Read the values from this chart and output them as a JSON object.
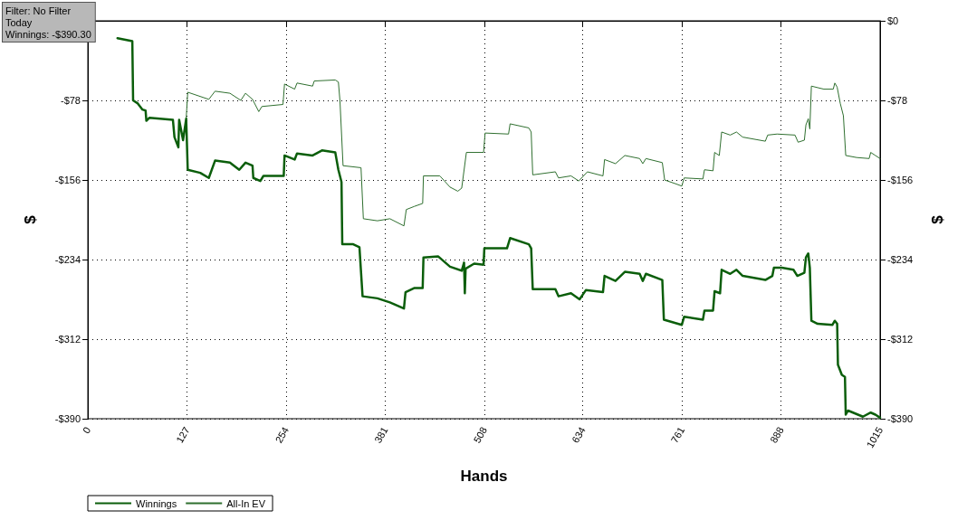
{
  "chart_data": {
    "type": "line",
    "xlabel": "Hands",
    "ylabel": "$",
    "y2label": "$",
    "annotations": [
      "Filter: No Filter\nToday\nWinnings: -$390.30"
    ],
    "xlim": [
      0,
      1015
    ],
    "xticks": [
      0,
      127,
      254,
      381,
      508,
      634,
      761,
      888,
      1015
    ],
    "ylim": [
      -390,
      0
    ],
    "yticks": [
      {
        "value": 0,
        "label": null
      },
      {
        "value": -78,
        "label": "-$78"
      },
      {
        "value": -156,
        "label": "-$156"
      },
      {
        "value": -234,
        "label": "-$234"
      },
      {
        "value": -312,
        "label": "-$312"
      },
      {
        "value": -390,
        "label": "-$390"
      }
    ],
    "y2lim": [
      -390,
      0
    ],
    "y2ticks": [
      {
        "value": 0,
        "label": "$0"
      },
      {
        "value": -78,
        "label": "-$78"
      },
      {
        "value": -156,
        "label": "-$156"
      },
      {
        "value": -234,
        "label": "-$234"
      },
      {
        "value": -312,
        "label": "-$312"
      },
      {
        "value": -390,
        "label": "-$390"
      }
    ],
    "grid": true,
    "legend": "bottom left",
    "marker": "none",
    "line_style": "solid",
    "series": [
      {
        "name": "Winnings",
        "color": "#0b5e0b",
        "x": [
          38,
          57,
          58,
          64,
          70,
          74,
          75,
          79,
          109,
          111,
          116,
          117,
          122,
          126,
          128,
          144,
          155,
          163,
          182,
          194,
          202,
          211,
          212,
          221,
          225,
          251,
          252,
          265,
          268,
          288,
          300,
          317,
          321,
          325,
          326,
          340,
          348,
          352,
          371,
          387,
          405,
          407,
          418,
          429,
          430,
          449,
          464,
          479,
          482,
          483,
          484,
          495,
          507,
          508,
          537,
          541,
          565,
          568,
          570,
          599,
          603,
          619,
          630,
          638,
          660,
          662,
          676,
          688,
          707,
          711,
          715,
          736,
          738,
          761,
          764,
          788,
          790,
          801,
          803,
          810,
          812,
          823,
          831,
          839,
          868,
          877,
          879,
          889,
          904,
          909,
          918,
          920,
          923,
          925,
          927,
          935,
          954,
          957,
          960,
          961,
          966,
          970,
          971,
          974,
          993,
          1003,
          1009,
          1015
        ],
        "values": [
          -17,
          -20,
          -78,
          -81,
          -87,
          -88,
          -98,
          -95,
          -97,
          -114,
          -124,
          -97,
          -117,
          -96,
          -146,
          -149,
          -154,
          -137,
          -139,
          -146,
          -139,
          -142,
          -154,
          -157,
          -152,
          -152,
          -132,
          -136,
          -130,
          -132,
          -127,
          -129,
          -146,
          -158,
          -219,
          -219,
          -222,
          -270,
          -272,
          -276,
          -282,
          -266,
          -262,
          -262,
          -232,
          -231,
          -241,
          -245,
          -237,
          -267,
          -243,
          -238,
          -239,
          -223,
          -223,
          -213,
          -219,
          -223,
          -263,
          -263,
          -270,
          -267,
          -273,
          -264,
          -266,
          -250,
          -255,
          -246,
          -248,
          -255,
          -248,
          -254,
          -293,
          -298,
          -290,
          -293,
          -284,
          -284,
          -265,
          -267,
          -244,
          -248,
          -244,
          -250,
          -254,
          -250,
          -242,
          -242,
          -244,
          -250,
          -247,
          -232,
          -228,
          -242,
          -294,
          -297,
          -298,
          -294,
          -297,
          -337,
          -347,
          -349,
          -386,
          -382,
          -388,
          -384,
          -386,
          -389
        ]
      },
      {
        "name": "All-In EV",
        "color": "#2f6f2f",
        "x": [
          126,
          128,
          155,
          163,
          182,
          196,
          202,
          211,
          219,
          223,
          250,
          252,
          265,
          268,
          288,
          290,
          317,
          321,
          323,
          327,
          350,
          353,
          371,
          387,
          405,
          408,
          418,
          429,
          430,
          451,
          464,
          474,
          479,
          485,
          507,
          509,
          539,
          541,
          565,
          568,
          570,
          599,
          603,
          619,
          629,
          640,
          660,
          662,
          676,
          688,
          707,
          711,
          715,
          736,
          739,
          754,
          761,
          764,
          788,
          790,
          801,
          803,
          809,
          812,
          823,
          831,
          839,
          868,
          871,
          883,
          906,
          910,
          918,
          920,
          923,
          925,
          927,
          943,
          955,
          957,
          960,
          964,
          968,
          971,
          985,
          1001,
          1003,
          1009,
          1015
        ],
        "values": [
          -96,
          -70,
          -77,
          -69,
          -71,
          -78,
          -71,
          -77,
          -89,
          -84,
          -82,
          -62,
          -67,
          -61,
          -64,
          -59,
          -58,
          -60,
          -78,
          -142,
          -144,
          -194,
          -196,
          -194,
          -201,
          -185,
          -182,
          -179,
          -152,
          -152,
          -163,
          -167,
          -164,
          -129,
          -129,
          -110,
          -111,
          -101,
          -105,
          -109,
          -151,
          -148,
          -154,
          -152,
          -157,
          -148,
          -152,
          -136,
          -140,
          -132,
          -135,
          -140,
          -135,
          -139,
          -156,
          -160,
          -162,
          -154,
          -155,
          -146,
          -147,
          -129,
          -132,
          -109,
          -112,
          -109,
          -114,
          -118,
          -112,
          -111,
          -112,
          -119,
          -117,
          -102,
          -96,
          -106,
          -64,
          -67,
          -67,
          -61,
          -65,
          -81,
          -93,
          -132,
          -134,
          -135,
          -129,
          -132,
          -135
        ]
      }
    ]
  }
}
